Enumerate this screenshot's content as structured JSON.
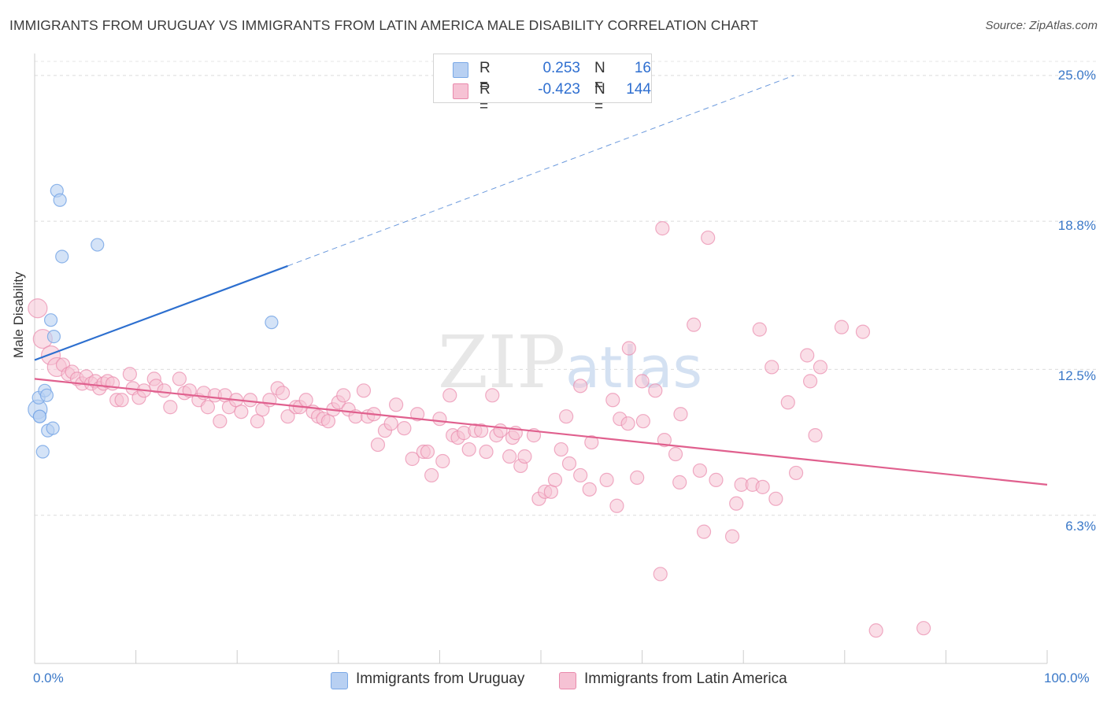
{
  "title": "IMMIGRANTS FROM URUGUAY VS IMMIGRANTS FROM LATIN AMERICA MALE DISABILITY CORRELATION CHART",
  "source": "Source: ZipAtlas.com",
  "legend": {
    "uruguay": {
      "r_label": "R =",
      "r_value": "0.253",
      "n_label": "N =",
      "n_value": "16"
    },
    "latin": {
      "r_label": "R =",
      "r_value": "-0.423",
      "n_label": "N =",
      "n_value": "144"
    }
  },
  "colors": {
    "uruguay": "#7aa8e6",
    "uruguay_fill": "#b8d0f2",
    "uruguay_line": "#2d6fcf",
    "latin": "#e98aac",
    "latin_fill": "#f6c2d4",
    "latin_line": "#e0608e",
    "axis_text": "#3a78c8"
  },
  "chart_data": {
    "type": "scatter",
    "title": "IMMIGRANTS FROM URUGUAY VS IMMIGRANTS FROM LATIN AMERICA MALE DISABILITY CORRELATION CHART",
    "xlabel": "",
    "ylabel": "Male Disability",
    "xlim": [
      0,
      100
    ],
    "ylim": [
      0,
      26.2
    ],
    "x_tick_labels": {
      "min": "0.0%",
      "max": "100.0%"
    },
    "y_ticks": [
      {
        "value": 6.3,
        "label": "6.3%"
      },
      {
        "value": 12.5,
        "label": "12.5%"
      },
      {
        "value": 18.8,
        "label": "18.8%"
      },
      {
        "value": 25.0,
        "label": "25.0%"
      }
    ],
    "grid": true,
    "watermark": "ZIPatlas",
    "series": [
      {
        "name": "Immigrants from Uruguay",
        "r": 0.253,
        "n": 16,
        "trend": {
          "x0": 0,
          "y0": 12.9,
          "x1": 25,
          "y1": 16.9,
          "dash_x1": 75,
          "dash_y1": 25.0
        },
        "points": [
          {
            "x": 0.3,
            "y": 10.8,
            "big": true
          },
          {
            "x": 0.4,
            "y": 11.3
          },
          {
            "x": 0.5,
            "y": 10.5
          },
          {
            "x": 0.5,
            "y": 10.5
          },
          {
            "x": 0.8,
            "y": 9.0
          },
          {
            "x": 1.0,
            "y": 11.6
          },
          {
            "x": 1.2,
            "y": 11.4
          },
          {
            "x": 1.3,
            "y": 9.9
          },
          {
            "x": 1.6,
            "y": 14.6
          },
          {
            "x": 1.8,
            "y": 10.0
          },
          {
            "x": 1.9,
            "y": 13.9
          },
          {
            "x": 2.2,
            "y": 20.1
          },
          {
            "x": 2.5,
            "y": 19.7
          },
          {
            "x": 2.7,
            "y": 17.3
          },
          {
            "x": 6.2,
            "y": 17.8
          },
          {
            "x": 23.4,
            "y": 14.5
          }
        ]
      },
      {
        "name": "Immigrants from Latin America",
        "r": -0.423,
        "n": 144,
        "trend": {
          "x0": 0,
          "y0": 12.1,
          "x1": 100,
          "y1": 7.6
        },
        "points": [
          {
            "x": 0.3,
            "y": 15.1,
            "big": true
          },
          {
            "x": 0.8,
            "y": 13.8,
            "big": true
          },
          {
            "x": 1.6,
            "y": 13.1,
            "big": true
          },
          {
            "x": 2.2,
            "y": 12.6,
            "big": true
          },
          {
            "x": 2.8,
            "y": 12.7
          },
          {
            "x": 3.3,
            "y": 12.3
          },
          {
            "x": 3.7,
            "y": 12.4
          },
          {
            "x": 4.2,
            "y": 12.1
          },
          {
            "x": 4.7,
            "y": 11.9
          },
          {
            "x": 5.1,
            "y": 12.2
          },
          {
            "x": 5.6,
            "y": 11.9
          },
          {
            "x": 6.0,
            "y": 12.0
          },
          {
            "x": 6.4,
            "y": 11.7
          },
          {
            "x": 6.8,
            "y": 11.9
          },
          {
            "x": 7.2,
            "y": 12.0
          },
          {
            "x": 7.7,
            "y": 11.9
          },
          {
            "x": 8.1,
            "y": 11.2
          },
          {
            "x": 8.6,
            "y": 11.2
          },
          {
            "x": 9.4,
            "y": 12.3
          },
          {
            "x": 9.7,
            "y": 11.7
          },
          {
            "x": 10.3,
            "y": 11.3
          },
          {
            "x": 10.8,
            "y": 11.6
          },
          {
            "x": 11.8,
            "y": 12.1
          },
          {
            "x": 12.0,
            "y": 11.8
          },
          {
            "x": 12.8,
            "y": 11.6
          },
          {
            "x": 13.4,
            "y": 10.9
          },
          {
            "x": 14.3,
            "y": 12.1
          },
          {
            "x": 14.8,
            "y": 11.5
          },
          {
            "x": 15.3,
            "y": 11.6
          },
          {
            "x": 16.2,
            "y": 11.2
          },
          {
            "x": 16.7,
            "y": 11.5
          },
          {
            "x": 17.1,
            "y": 10.9
          },
          {
            "x": 17.8,
            "y": 11.4
          },
          {
            "x": 18.3,
            "y": 10.3
          },
          {
            "x": 18.8,
            "y": 11.4
          },
          {
            "x": 19.2,
            "y": 10.9
          },
          {
            "x": 19.9,
            "y": 11.2
          },
          {
            "x": 20.4,
            "y": 10.7
          },
          {
            "x": 21.3,
            "y": 11.2
          },
          {
            "x": 22.0,
            "y": 10.3
          },
          {
            "x": 22.5,
            "y": 10.8
          },
          {
            "x": 23.2,
            "y": 11.2
          },
          {
            "x": 24.0,
            "y": 11.7
          },
          {
            "x": 24.5,
            "y": 11.5
          },
          {
            "x": 25.0,
            "y": 10.5
          },
          {
            "x": 25.8,
            "y": 10.9
          },
          {
            "x": 26.2,
            "y": 10.9
          },
          {
            "x": 26.8,
            "y": 11.2
          },
          {
            "x": 27.5,
            "y": 10.7
          },
          {
            "x": 28.0,
            "y": 10.5
          },
          {
            "x": 28.5,
            "y": 10.4
          },
          {
            "x": 29.0,
            "y": 10.3
          },
          {
            "x": 29.5,
            "y": 10.8
          },
          {
            "x": 30.0,
            "y": 11.1
          },
          {
            "x": 30.5,
            "y": 11.4
          },
          {
            "x": 31.0,
            "y": 10.8
          },
          {
            "x": 31.7,
            "y": 10.5
          },
          {
            "x": 32.5,
            "y": 11.6
          },
          {
            "x": 32.9,
            "y": 10.5
          },
          {
            "x": 33.5,
            "y": 10.6
          },
          {
            "x": 33.9,
            "y": 9.3
          },
          {
            "x": 34.6,
            "y": 9.9
          },
          {
            "x": 35.2,
            "y": 10.2
          },
          {
            "x": 35.7,
            "y": 11.0
          },
          {
            "x": 36.5,
            "y": 10.0
          },
          {
            "x": 37.3,
            "y": 8.7
          },
          {
            "x": 37.8,
            "y": 10.6
          },
          {
            "x": 38.4,
            "y": 9.0
          },
          {
            "x": 38.8,
            "y": 9.0
          },
          {
            "x": 39.2,
            "y": 8.0
          },
          {
            "x": 40.0,
            "y": 10.4
          },
          {
            "x": 40.3,
            "y": 8.6
          },
          {
            "x": 41.0,
            "y": 11.4
          },
          {
            "x": 41.3,
            "y": 9.7
          },
          {
            "x": 41.8,
            "y": 9.6
          },
          {
            "x": 42.4,
            "y": 9.8
          },
          {
            "x": 42.9,
            "y": 9.1
          },
          {
            "x": 43.5,
            "y": 9.9
          },
          {
            "x": 44.1,
            "y": 9.9
          },
          {
            "x": 44.6,
            "y": 9.0
          },
          {
            "x": 45.2,
            "y": 11.4
          },
          {
            "x": 45.6,
            "y": 9.7
          },
          {
            "x": 46.0,
            "y": 9.9
          },
          {
            "x": 46.9,
            "y": 8.8
          },
          {
            "x": 47.2,
            "y": 9.6
          },
          {
            "x": 47.5,
            "y": 9.8
          },
          {
            "x": 48.0,
            "y": 8.4
          },
          {
            "x": 48.4,
            "y": 8.8
          },
          {
            "x": 49.3,
            "y": 9.7
          },
          {
            "x": 49.8,
            "y": 7.0
          },
          {
            "x": 50.4,
            "y": 7.3
          },
          {
            "x": 51.0,
            "y": 7.3
          },
          {
            "x": 51.4,
            "y": 7.8
          },
          {
            "x": 52.0,
            "y": 9.1
          },
          {
            "x": 52.5,
            "y": 10.5
          },
          {
            "x": 52.8,
            "y": 8.5
          },
          {
            "x": 53.9,
            "y": 11.8
          },
          {
            "x": 53.9,
            "y": 8.0
          },
          {
            "x": 54.8,
            "y": 7.4
          },
          {
            "x": 55.0,
            "y": 9.4
          },
          {
            "x": 56.5,
            "y": 7.8
          },
          {
            "x": 57.1,
            "y": 11.2
          },
          {
            "x": 57.5,
            "y": 6.7
          },
          {
            "x": 57.8,
            "y": 10.4
          },
          {
            "x": 58.6,
            "y": 10.2
          },
          {
            "x": 58.7,
            "y": 13.4
          },
          {
            "x": 59.5,
            "y": 7.9
          },
          {
            "x": 60.0,
            "y": 12.0
          },
          {
            "x": 60.1,
            "y": 10.3
          },
          {
            "x": 61.3,
            "y": 11.6
          },
          {
            "x": 61.8,
            "y": 3.8
          },
          {
            "x": 62.0,
            "y": 18.5
          },
          {
            "x": 62.2,
            "y": 9.5
          },
          {
            "x": 63.3,
            "y": 8.9
          },
          {
            "x": 63.7,
            "y": 7.7
          },
          {
            "x": 63.8,
            "y": 10.6
          },
          {
            "x": 65.1,
            "y": 14.4
          },
          {
            "x": 65.7,
            "y": 8.2
          },
          {
            "x": 66.1,
            "y": 5.6
          },
          {
            "x": 66.5,
            "y": 18.1
          },
          {
            "x": 67.3,
            "y": 7.8
          },
          {
            "x": 68.9,
            "y": 5.4
          },
          {
            "x": 69.3,
            "y": 6.8
          },
          {
            "x": 69.8,
            "y": 7.6
          },
          {
            "x": 70.9,
            "y": 7.6
          },
          {
            "x": 71.6,
            "y": 14.2
          },
          {
            "x": 71.9,
            "y": 7.5
          },
          {
            "x": 72.8,
            "y": 12.6
          },
          {
            "x": 73.2,
            "y": 7.0
          },
          {
            "x": 74.4,
            "y": 11.1
          },
          {
            "x": 75.2,
            "y": 8.1
          },
          {
            "x": 76.3,
            "y": 13.1
          },
          {
            "x": 76.6,
            "y": 12.0
          },
          {
            "x": 77.1,
            "y": 9.7
          },
          {
            "x": 77.6,
            "y": 12.6
          },
          {
            "x": 79.7,
            "y": 14.3
          },
          {
            "x": 81.8,
            "y": 14.1
          },
          {
            "x": 83.1,
            "y": 1.4
          },
          {
            "x": 87.8,
            "y": 1.5
          }
        ]
      }
    ]
  },
  "bottom_legend": {
    "uruguay": "Immigrants from Uruguay",
    "latin": "Immigrants from Latin America"
  }
}
